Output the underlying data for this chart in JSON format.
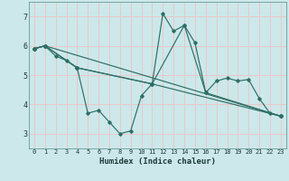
{
  "xlabel": "Humidex (Indice chaleur)",
  "bg_color": "#cce8ea",
  "grid_color": "#e8c8c8",
  "line_color": "#2d6e66",
  "xlim": [
    -0.5,
    23.5
  ],
  "ylim": [
    2.5,
    7.5
  ],
  "xticks": [
    0,
    1,
    2,
    3,
    4,
    5,
    6,
    7,
    8,
    9,
    10,
    11,
    12,
    13,
    14,
    15,
    16,
    17,
    18,
    19,
    20,
    21,
    22,
    23
  ],
  "yticks": [
    3,
    4,
    5,
    6,
    7
  ],
  "series": [
    {
      "x": [
        0,
        1,
        2,
        3,
        4,
        5,
        6,
        7,
        8,
        9,
        10,
        11,
        12,
        13,
        14,
        15,
        16,
        17,
        18,
        19,
        20,
        21,
        22,
        23
      ],
      "y": [
        5.9,
        6.0,
        5.65,
        5.5,
        5.25,
        3.7,
        3.8,
        3.4,
        3.0,
        3.1,
        4.3,
        4.7,
        7.1,
        6.5,
        6.7,
        6.1,
        4.4,
        4.8,
        4.9,
        4.8,
        4.85,
        4.2,
        3.7,
        3.6
      ]
    },
    {
      "x": [
        0,
        1,
        4,
        11,
        23
      ],
      "y": [
        5.9,
        6.0,
        5.25,
        4.7,
        3.6
      ]
    },
    {
      "x": [
        0,
        1,
        4,
        11,
        14,
        16,
        23
      ],
      "y": [
        5.9,
        6.0,
        5.25,
        4.7,
        6.7,
        4.4,
        3.6
      ]
    },
    {
      "x": [
        0,
        1,
        23
      ],
      "y": [
        5.9,
        6.0,
        3.6
      ]
    }
  ]
}
